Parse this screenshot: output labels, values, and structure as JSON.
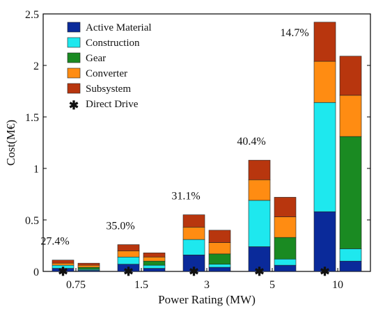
{
  "chart_data": {
    "type": "bar",
    "stacked": true,
    "grouped": true,
    "title": "",
    "xlabel": "Power Rating (MW)",
    "ylabel": "Cost(M€)",
    "ylim": [
      0,
      2.5
    ],
    "yticks": [
      "0",
      "0.5",
      "1",
      "1.5",
      "2",
      "2.5"
    ],
    "categories": [
      "0.75",
      "1.5",
      "3",
      "5",
      "10"
    ],
    "legend_position": "top-left",
    "series": [
      {
        "name": "Active Material",
        "color": "#0a2a9a"
      },
      {
        "name": "Construction",
        "color": "#1ee8ee"
      },
      {
        "name": "Gear",
        "color": "#1a8a22"
      },
      {
        "name": "Converter",
        "color": "#ff8c12"
      },
      {
        "name": "Subsystem",
        "color": "#b8360e"
      }
    ],
    "direct_drive_marker": {
      "name": "Direct Drive",
      "symbol": "✱"
    },
    "groups": [
      {
        "category": "0.75",
        "annotation": "27.4%",
        "direct_drive": [
          0.03,
          0.03,
          0.0,
          0.02,
          0.03
        ],
        "geared": [
          0.01,
          0.01,
          0.02,
          0.02,
          0.02
        ]
      },
      {
        "category": "1.5",
        "annotation": "35.0%",
        "direct_drive": [
          0.07,
          0.07,
          0.0,
          0.06,
          0.06
        ],
        "geared": [
          0.03,
          0.03,
          0.04,
          0.04,
          0.04
        ]
      },
      {
        "category": "3",
        "annotation": "31.1%",
        "direct_drive": [
          0.16,
          0.15,
          0.0,
          0.12,
          0.12
        ],
        "geared": [
          0.04,
          0.03,
          0.1,
          0.11,
          0.12
        ]
      },
      {
        "category": "5",
        "annotation": "40.4%",
        "direct_drive": [
          0.24,
          0.45,
          0.0,
          0.2,
          0.19
        ],
        "geared": [
          0.06,
          0.06,
          0.21,
          0.2,
          0.19
        ]
      },
      {
        "category": "10",
        "annotation": "14.7%",
        "direct_drive": [
          0.58,
          1.06,
          0.0,
          0.4,
          0.38
        ],
        "geared": [
          0.1,
          0.12,
          1.09,
          0.4,
          0.38
        ]
      }
    ]
  }
}
